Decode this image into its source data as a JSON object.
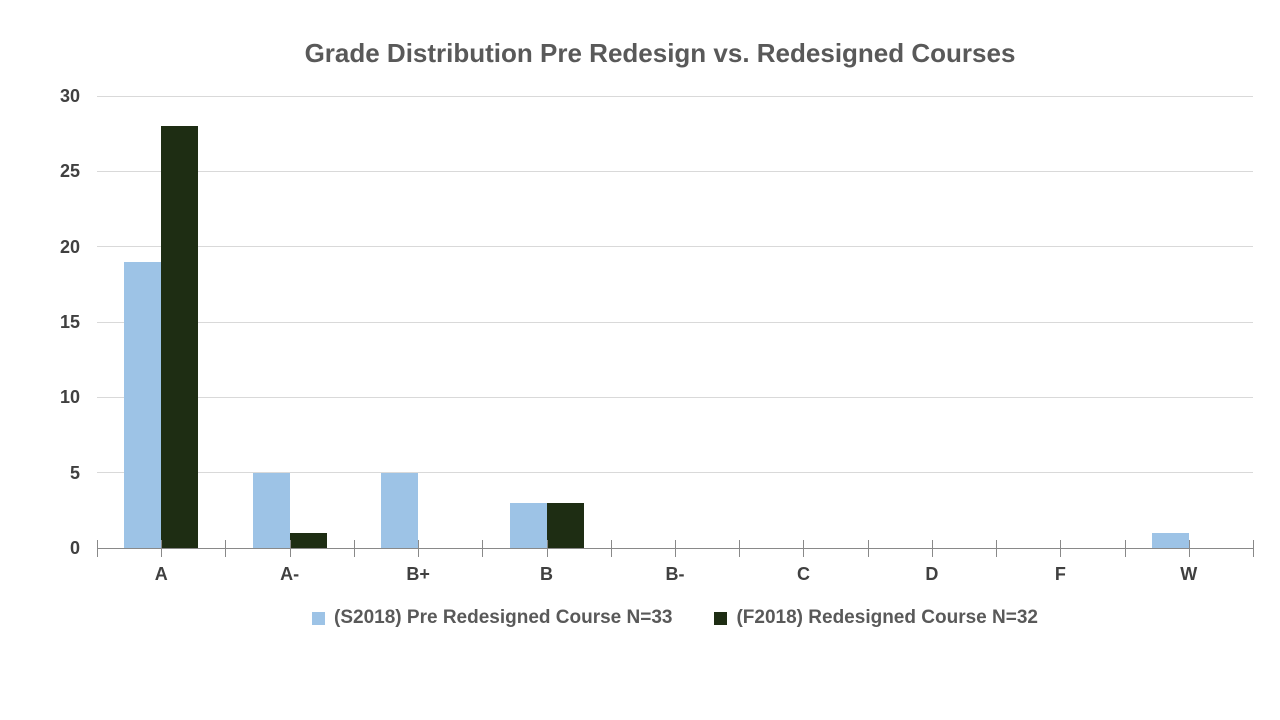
{
  "chart_data": {
    "type": "bar",
    "title": "Grade Distribution Pre Redesign vs. Redesigned Courses",
    "categories": [
      "A",
      "A-",
      "B+",
      "B",
      "B-",
      "C",
      "D",
      "F",
      "W"
    ],
    "series": [
      {
        "name": "(S2018) Pre Redesigned Course N=33",
        "color": "#9DC3E6",
        "values": [
          19,
          5,
          5,
          3,
          0,
          0,
          0,
          0,
          1
        ]
      },
      {
        "name": "(F2018) Redesigned Course N=32",
        "color": "#1E2D13",
        "values": [
          28,
          1,
          0,
          3,
          0,
          0,
          0,
          0,
          0
        ]
      }
    ],
    "xlabel": "",
    "ylabel": "",
    "ylim": [
      0,
      30
    ],
    "yticks": [
      0,
      5,
      10,
      15,
      20,
      25,
      30
    ],
    "grid": "horizontal",
    "legend_position": "bottom"
  },
  "colors": {
    "title_text": "#595959",
    "axis_label_text": "#404040",
    "legend_text": "#595959",
    "gridline": "#D9D9D9",
    "axis_line": "#898989",
    "background": "#FFFFFF",
    "series_1": "#9DC3E6",
    "series_2": "#1E2D13"
  }
}
